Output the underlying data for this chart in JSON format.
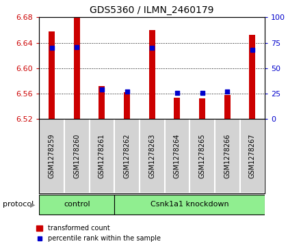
{
  "title": "GDS5360 / ILMN_2460179",
  "samples": [
    "GSM1278259",
    "GSM1278260",
    "GSM1278261",
    "GSM1278262",
    "GSM1278263",
    "GSM1278264",
    "GSM1278265",
    "GSM1278266",
    "GSM1278267"
  ],
  "transformed_counts": [
    6.658,
    6.68,
    6.572,
    6.562,
    6.66,
    6.554,
    6.552,
    6.558,
    6.652
  ],
  "percentile_ranks": [
    70,
    71,
    29,
    27,
    70,
    26,
    26,
    27,
    68
  ],
  "ylim_left": [
    6.52,
    6.68
  ],
  "ylim_right": [
    0,
    100
  ],
  "yticks_left": [
    6.52,
    6.56,
    6.6,
    6.64,
    6.68
  ],
  "yticks_right": [
    0,
    25,
    50,
    75,
    100
  ],
  "bar_color": "#CC0000",
  "dot_color": "#0000CC",
  "bar_width": 0.25,
  "tick_label_color_left": "#CC0000",
  "tick_label_color_right": "#0000CC",
  "n_samples": 9,
  "control_count": 3,
  "group_bg_color": "#90EE90",
  "sample_bg_color": "#D3D3D3",
  "legend_bar_label": "transformed count",
  "legend_dot_label": "percentile rank within the sample",
  "protocol_label": "protocol"
}
